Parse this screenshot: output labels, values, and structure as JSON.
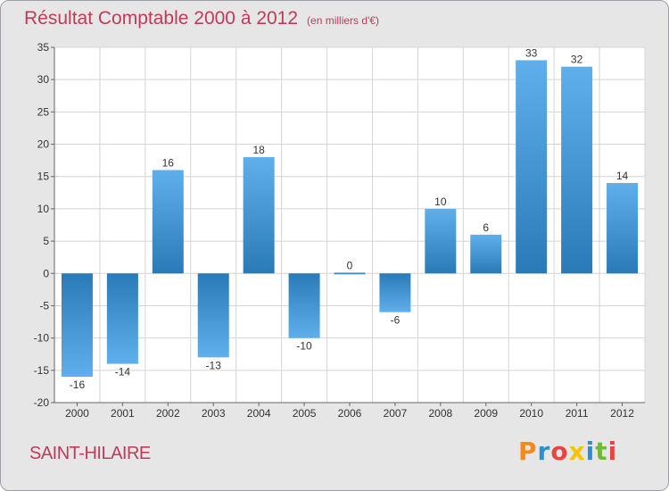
{
  "header": {
    "title": "Résultat Comptable 2000 à 2012",
    "subtitle": "(en milliers d'€)"
  },
  "footer": {
    "city": "SAINT-HILAIRE",
    "logo_text": "Proxiti",
    "logo_colors": [
      "#f08a1c",
      "#2b8fd6",
      "#e8453c",
      "#f5c400",
      "#2b8fd6",
      "#6dbb3d",
      "#e8453c"
    ]
  },
  "chart_data": {
    "type": "bar",
    "title": "Résultat Comptable 2000 à 2012",
    "subtitle": "(en milliers d'€)",
    "categories": [
      "2000",
      "2001",
      "2002",
      "2003",
      "2004",
      "2005",
      "2006",
      "2007",
      "2008",
      "2009",
      "2010",
      "2011",
      "2012"
    ],
    "values": [
      -16,
      -14,
      16,
      -13,
      18,
      -10,
      0,
      -6,
      10,
      6,
      33,
      32,
      14
    ],
    "ylim": [
      -20,
      35
    ],
    "yticks": [
      -20,
      -15,
      -10,
      -5,
      0,
      5,
      10,
      15,
      20,
      25,
      30,
      35
    ],
    "grid": true,
    "legend": "none",
    "colors": {
      "bar_light": "#5eb0ec",
      "bar_dark": "#2a7ab8",
      "plot_bg": "#ffffff",
      "grid": "#d4d4d4"
    }
  }
}
